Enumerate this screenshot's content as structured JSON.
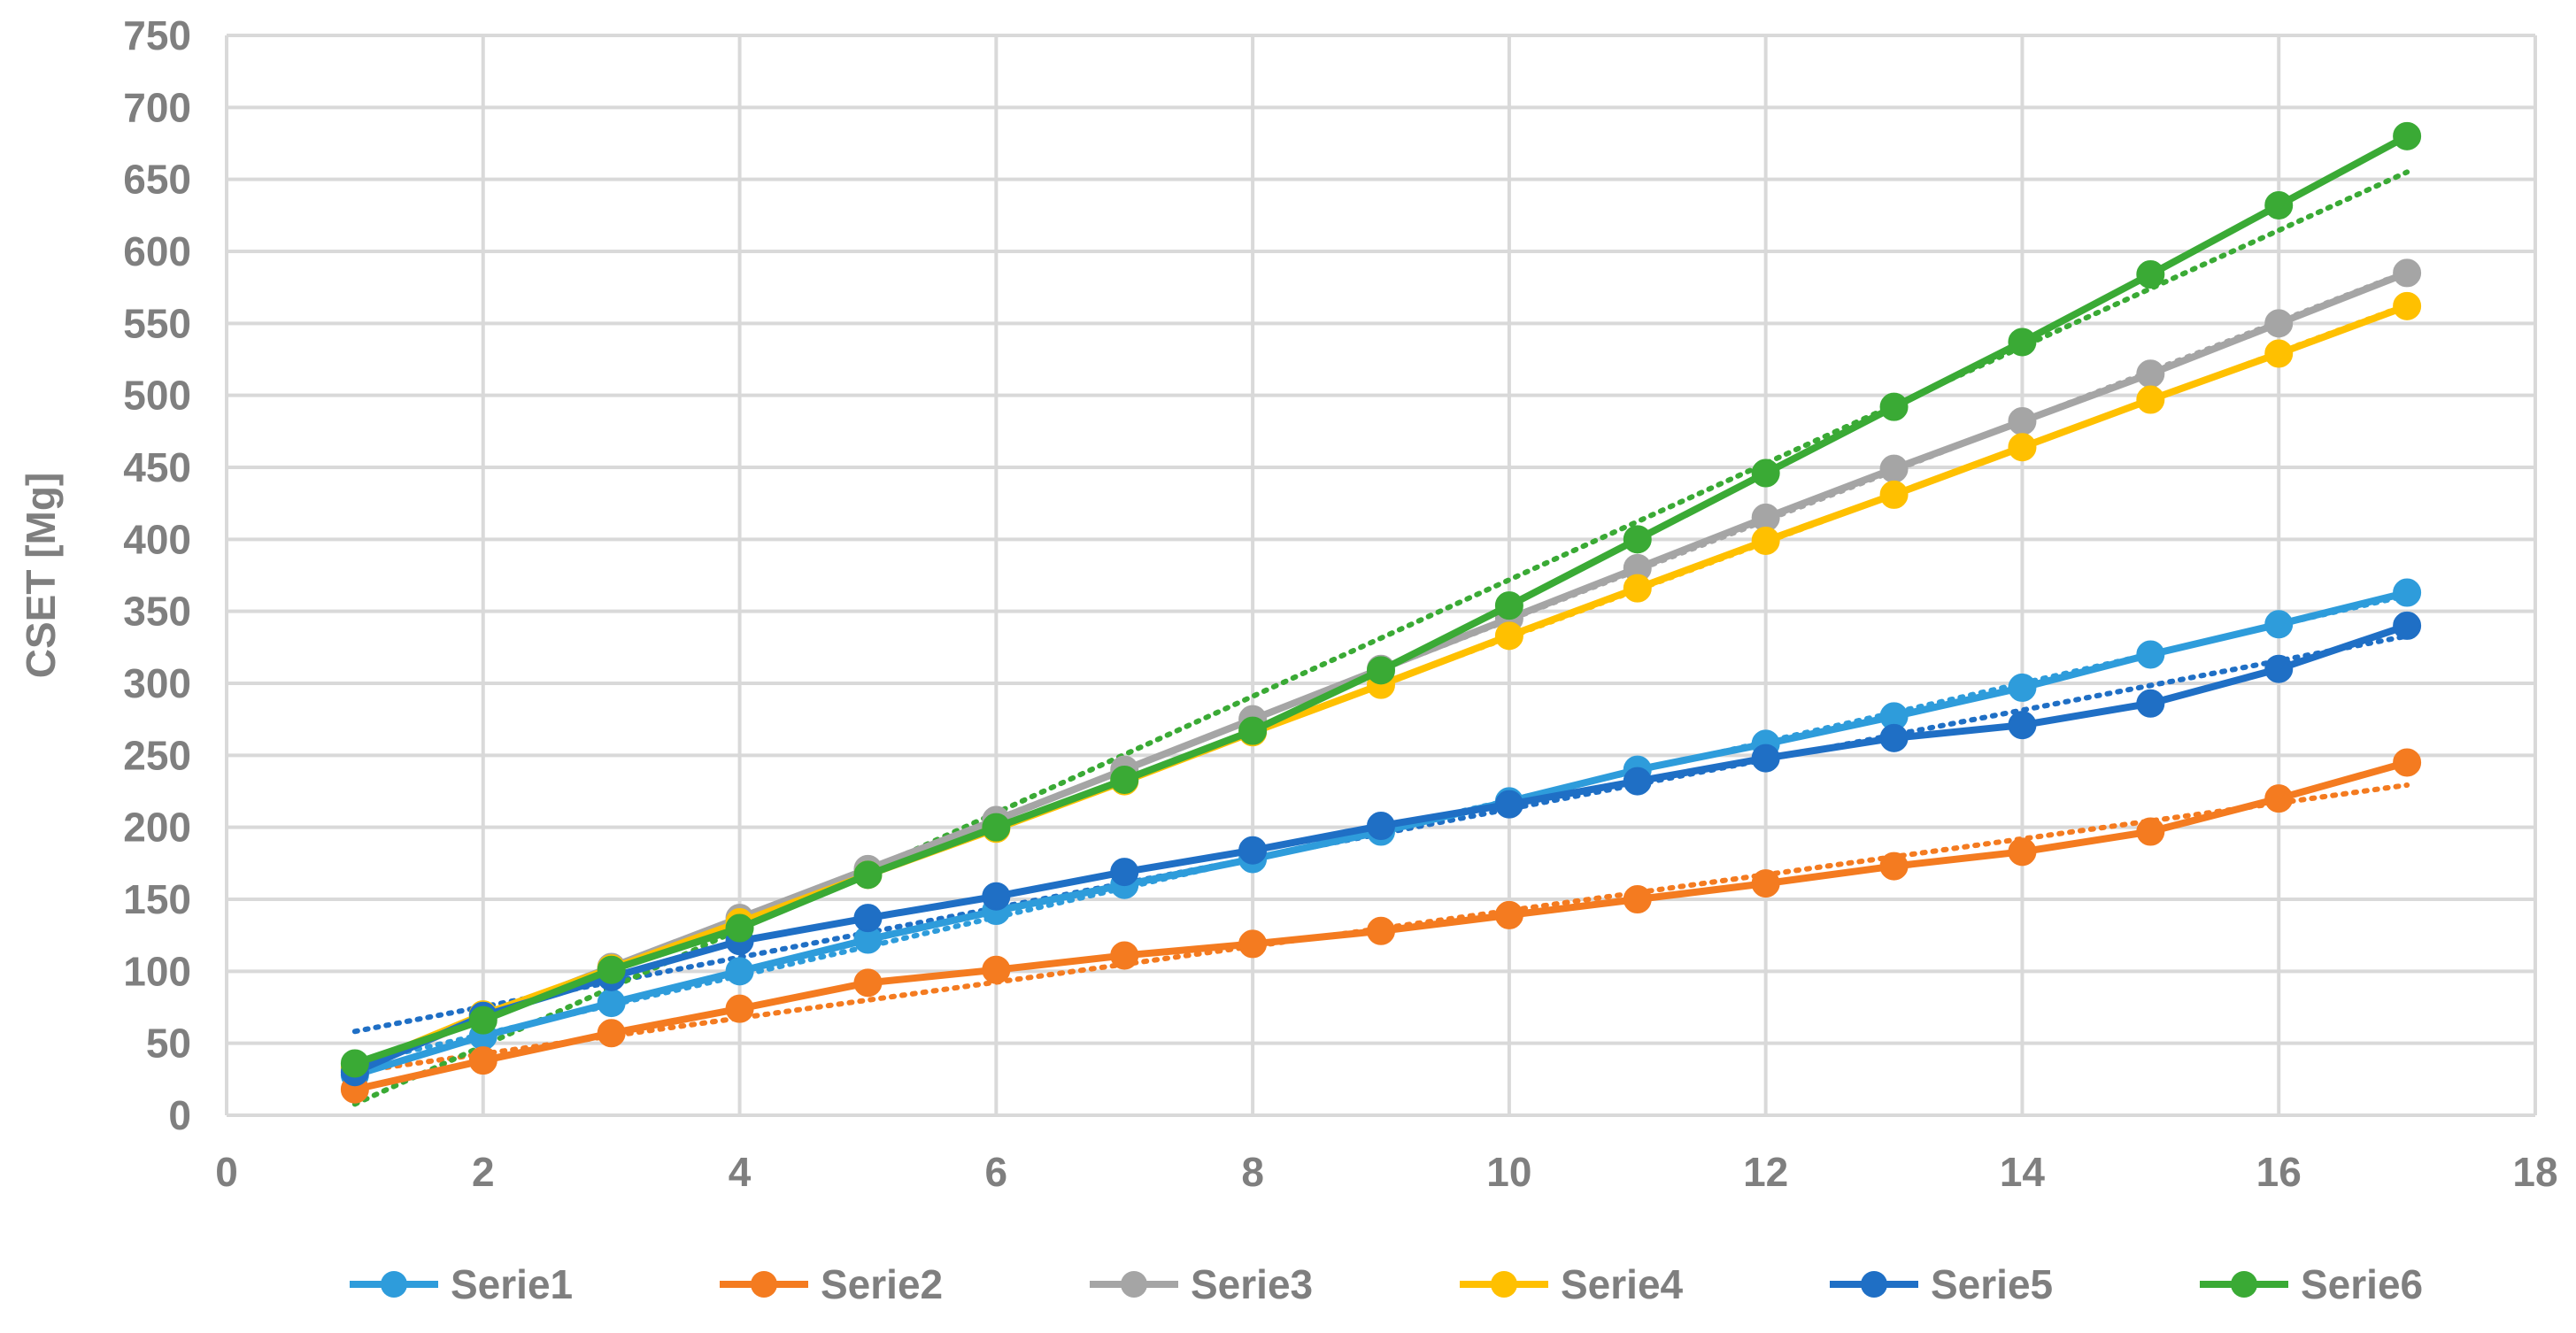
{
  "chart_data": {
    "type": "line",
    "title": "",
    "xlabel": "",
    "ylabel": "CSET [Mg]",
    "xlim": [
      0,
      18
    ],
    "ylim": [
      0,
      750
    ],
    "x_ticks": [
      0,
      2,
      4,
      6,
      8,
      10,
      12,
      14,
      16,
      18
    ],
    "y_ticks": [
      0,
      50,
      100,
      150,
      200,
      250,
      300,
      350,
      400,
      450,
      500,
      550,
      600,
      650,
      700,
      750
    ],
    "grid": "on",
    "legend_position": "bottom",
    "trendlines": "linear, dotted",
    "x": [
      1,
      2,
      3,
      4,
      5,
      6,
      7,
      8,
      9,
      10,
      11,
      12,
      13,
      14,
      15,
      16,
      17
    ],
    "series": [
      {
        "name": "Serie1",
        "color": "#2e9cdb",
        "values": [
          28,
          55,
          78,
          100,
          122,
          142,
          160,
          178,
          197,
          218,
          240,
          258,
          277,
          297,
          320,
          341,
          363
        ]
      },
      {
        "name": "Serie2",
        "color": "#f47b20",
        "values": [
          18,
          38,
          57,
          74,
          92,
          101,
          111,
          119,
          128,
          139,
          150,
          161,
          173,
          183,
          197,
          220,
          245
        ]
      },
      {
        "name": "Serie3",
        "color": "#a5a5a5",
        "values": [
          31,
          68,
          103,
          137,
          171,
          205,
          240,
          275,
          310,
          345,
          380,
          415,
          449,
          482,
          515,
          550,
          585
        ]
      },
      {
        "name": "Serie4",
        "color": "#ffc000",
        "values": [
          33,
          70,
          102,
          134,
          167,
          199,
          232,
          266,
          299,
          333,
          366,
          399,
          431,
          464,
          497,
          529,
          562
        ]
      },
      {
        "name": "Serie5",
        "color": "#1f6fc5",
        "values": [
          30,
          69,
          96,
          121,
          137,
          152,
          169,
          184,
          201,
          216,
          232,
          248,
          262,
          271,
          286,
          310,
          340
        ]
      },
      {
        "name": "Serie6",
        "color": "#3aaa35",
        "values": [
          36,
          66,
          101,
          130,
          167,
          200,
          233,
          267,
          309,
          354,
          400,
          446,
          492,
          537,
          584,
          632,
          680
        ]
      }
    ]
  }
}
